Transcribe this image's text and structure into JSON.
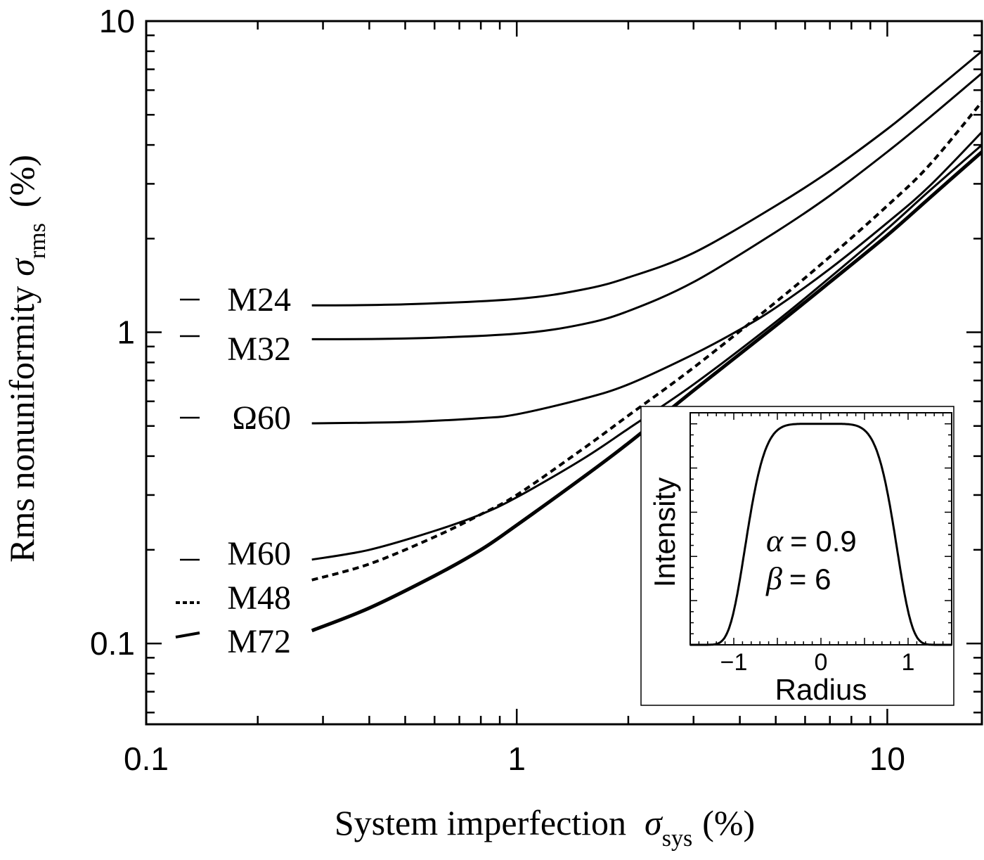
{
  "chart_data": [
    {
      "type": "line",
      "xlabel": {
        "main": "System imperfection",
        "symbol": "σ",
        "subscript": "sys",
        "unit": "(%)"
      },
      "ylabel": {
        "main": "Rms nonuniformity",
        "symbol": "σ",
        "subscript": "rms",
        "unit": "(%)"
      },
      "x_scale": "log",
      "y_scale": "log",
      "xlim": [
        0.1,
        18
      ],
      "ylim": [
        0.055,
        10
      ],
      "x_ticks": [
        {
          "value": 0.1,
          "label": "0.1"
        },
        {
          "value": 1,
          "label": "1"
        },
        {
          "value": 10,
          "label": "10"
        }
      ],
      "y_ticks": [
        {
          "value": 0.1,
          "label": "0.1"
        },
        {
          "value": 1,
          "label": "1"
        },
        {
          "value": 10,
          "label": "10"
        }
      ],
      "grid": false,
      "legend": "inline labels at left end of each curve",
      "series": [
        {
          "name": "M24",
          "style": "solid",
          "x": [
            0.28,
            0.5,
            1,
            1.5,
            2,
            3,
            5,
            7,
            10,
            13,
            18
          ],
          "y": [
            1.22,
            1.23,
            1.28,
            1.37,
            1.5,
            1.8,
            2.55,
            3.3,
            4.5,
            5.8,
            8.0
          ]
        },
        {
          "name": "M32",
          "style": "solid",
          "x": [
            0.28,
            0.5,
            1,
            1.5,
            2,
            3,
            5,
            7,
            10,
            13,
            18
          ],
          "y": [
            0.95,
            0.955,
            0.99,
            1.06,
            1.17,
            1.45,
            2.1,
            2.75,
            3.8,
            4.9,
            6.8
          ]
        },
        {
          "name": "Ω60",
          "style": "solid",
          "x": [
            0.28,
            0.5,
            0.8,
            1,
            1.5,
            2,
            3,
            4,
            5,
            7,
            10,
            13,
            18
          ],
          "y": [
            0.51,
            0.515,
            0.53,
            0.545,
            0.61,
            0.68,
            0.85,
            1.02,
            1.2,
            1.6,
            2.25,
            2.95,
            4.4
          ]
        },
        {
          "name": "M60",
          "style": "solid",
          "x": [
            0.28,
            0.4,
            0.6,
            0.8,
            1,
            1.5,
            2,
            3,
            5,
            7,
            10,
            13,
            18
          ],
          "y": [
            0.186,
            0.2,
            0.23,
            0.26,
            0.295,
            0.39,
            0.49,
            0.68,
            1.08,
            1.5,
            2.15,
            2.85,
            4.0
          ]
        },
        {
          "name": "M48",
          "style": "dashed",
          "x": [
            0.28,
            0.4,
            0.6,
            0.8,
            1,
            1.5,
            2,
            3,
            5,
            7,
            10,
            13,
            18
          ],
          "y": [
            0.16,
            0.18,
            0.22,
            0.26,
            0.3,
            0.42,
            0.54,
            0.77,
            1.25,
            1.75,
            2.55,
            3.45,
            5.5
          ]
        },
        {
          "name": "M72",
          "style": "bold",
          "x": [
            0.28,
            0.4,
            0.6,
            0.8,
            1,
            1.5,
            2,
            3,
            5,
            7,
            10,
            13,
            18
          ],
          "y": [
            0.11,
            0.13,
            0.165,
            0.2,
            0.24,
            0.34,
            0.44,
            0.65,
            1.05,
            1.45,
            2.05,
            2.7,
            3.8
          ]
        }
      ]
    },
    {
      "type": "line",
      "xlabel": "Radius",
      "ylabel": "Intensity",
      "xlim": [
        -1.5,
        1.5
      ],
      "ylim": [
        0,
        1.05
      ],
      "x_ticks": [
        {
          "value": -1,
          "label": "−1"
        },
        {
          "value": 0,
          "label": "0"
        },
        {
          "value": 1,
          "label": "1"
        }
      ],
      "annotations": [
        {
          "symbol": "α",
          "text": "= 0.9"
        },
        {
          "symbol": "β",
          "text": "= 6"
        }
      ],
      "parameters": {
        "alpha": 0.9,
        "beta": 6
      },
      "series": [
        {
          "function": "exp(-(|r|/alpha)^beta)",
          "style": "solid"
        }
      ]
    }
  ]
}
